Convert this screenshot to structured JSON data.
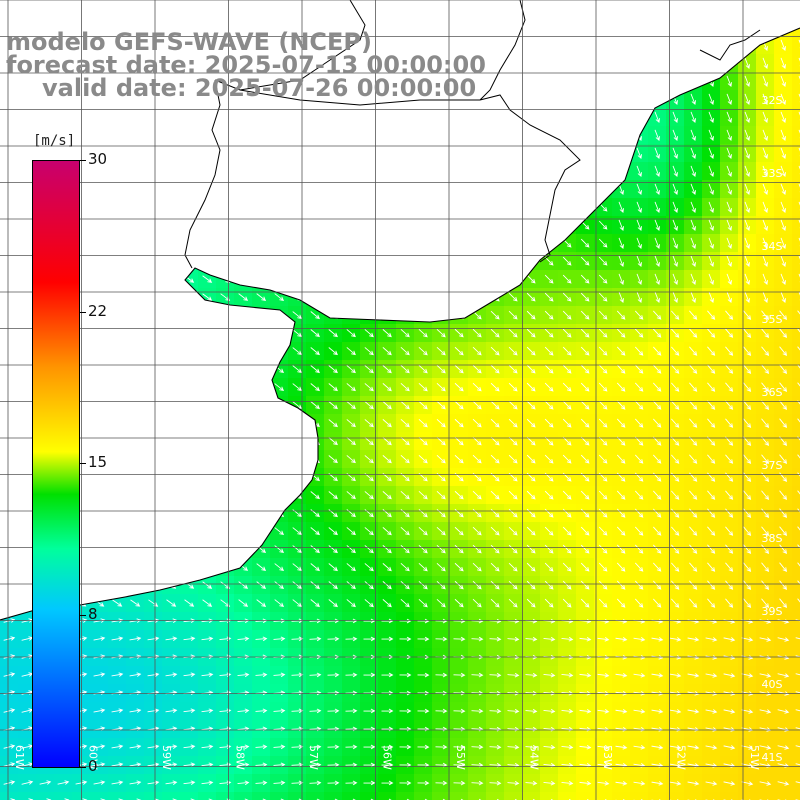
{
  "header": {
    "line1": "modelo GEFS-WAVE (NCEP)",
    "line2": "forecast date: 2025-07-13 00:00:00",
    "line3": "valid date: 2025-07-26 00:00:00"
  },
  "colorbar": {
    "units": "[m/s]",
    "min": 0,
    "max": 30,
    "ticks": [
      "30",
      "22",
      "15",
      "8",
      "0"
    ]
  },
  "map": {
    "lat_labels": [
      "32S",
      "33S",
      "34S",
      "35S",
      "36S",
      "37S",
      "38S",
      "39S",
      "40S",
      "41S"
    ],
    "lon_labels": [
      "61W",
      "60W",
      "59W",
      "58W",
      "57W",
      "56W",
      "55W",
      "54W",
      "53W",
      "52W",
      "51W"
    ],
    "colors": {
      "land": "#ffffff",
      "coast": "#000000",
      "grid": "#555555",
      "arrows": "#ffffff"
    }
  }
}
